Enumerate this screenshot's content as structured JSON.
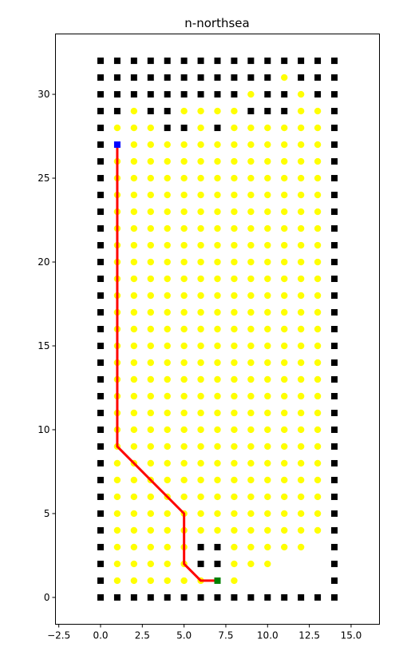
{
  "chart_data": {
    "type": "scatter",
    "title": "n-northsea",
    "xlabel": "",
    "ylabel": "",
    "xlim": [
      -2.7,
      16.7
    ],
    "ylim": [
      -1.6,
      33.6
    ],
    "xticks": [
      -2.5,
      0.0,
      2.5,
      5.0,
      7.5,
      10.0,
      12.5,
      15.0
    ],
    "xtick_labels": [
      "−2.5",
      "0.0",
      "2.5",
      "5.0",
      "7.5",
      "10.0",
      "12.5",
      "15.0"
    ],
    "yticks": [
      0,
      5,
      10,
      15,
      20,
      25,
      30
    ],
    "ytick_labels": [
      "0",
      "5",
      "10",
      "15",
      "20",
      "25",
      "30"
    ],
    "grid": false,
    "legend": "none",
    "colors": {
      "wall": "#000000",
      "free": "#ffff00",
      "path": "#ff0000",
      "start": "#0000ff",
      "goal": "#008000"
    },
    "series": [
      {
        "role": "walls",
        "marker": "square",
        "color": "#000000",
        "points": [
          [
            0,
            0
          ],
          [
            1,
            0
          ],
          [
            2,
            0
          ],
          [
            3,
            0
          ],
          [
            4,
            0
          ],
          [
            5,
            0
          ],
          [
            6,
            0
          ],
          [
            7,
            0
          ],
          [
            8,
            0
          ],
          [
            9,
            0
          ],
          [
            10,
            0
          ],
          [
            11,
            0
          ],
          [
            12,
            0
          ],
          [
            13,
            0
          ],
          [
            14,
            0
          ],
          [
            0,
            1
          ],
          [
            0,
            2
          ],
          [
            0,
            3
          ],
          [
            0,
            4
          ],
          [
            0,
            5
          ],
          [
            0,
            6
          ],
          [
            0,
            7
          ],
          [
            0,
            8
          ],
          [
            0,
            9
          ],
          [
            0,
            10
          ],
          [
            0,
            11
          ],
          [
            0,
            12
          ],
          [
            0,
            13
          ],
          [
            0,
            14
          ],
          [
            0,
            15
          ],
          [
            0,
            16
          ],
          [
            0,
            17
          ],
          [
            0,
            18
          ],
          [
            0,
            19
          ],
          [
            0,
            20
          ],
          [
            0,
            21
          ],
          [
            0,
            22
          ],
          [
            0,
            23
          ],
          [
            0,
            24
          ],
          [
            0,
            25
          ],
          [
            0,
            26
          ],
          [
            0,
            27
          ],
          [
            0,
            28
          ],
          [
            0,
            29
          ],
          [
            0,
            30
          ],
          [
            0,
            31
          ],
          [
            0,
            32
          ],
          [
            14,
            1
          ],
          [
            14,
            2
          ],
          [
            14,
            3
          ],
          [
            14,
            4
          ],
          [
            14,
            5
          ],
          [
            14,
            6
          ],
          [
            14,
            7
          ],
          [
            14,
            8
          ],
          [
            14,
            9
          ],
          [
            14,
            10
          ],
          [
            14,
            11
          ],
          [
            14,
            12
          ],
          [
            14,
            13
          ],
          [
            14,
            14
          ],
          [
            14,
            15
          ],
          [
            14,
            16
          ],
          [
            14,
            17
          ],
          [
            14,
            18
          ],
          [
            14,
            19
          ],
          [
            14,
            20
          ],
          [
            14,
            21
          ],
          [
            14,
            22
          ],
          [
            14,
            23
          ],
          [
            14,
            24
          ],
          [
            14,
            25
          ],
          [
            14,
            26
          ],
          [
            14,
            27
          ],
          [
            14,
            28
          ],
          [
            14,
            29
          ],
          [
            14,
            30
          ],
          [
            14,
            31
          ],
          [
            14,
            32
          ],
          [
            1,
            32
          ],
          [
            2,
            32
          ],
          [
            3,
            32
          ],
          [
            4,
            32
          ],
          [
            5,
            32
          ],
          [
            6,
            32
          ],
          [
            7,
            32
          ],
          [
            8,
            32
          ],
          [
            9,
            32
          ],
          [
            10,
            32
          ],
          [
            11,
            32
          ],
          [
            12,
            32
          ],
          [
            13,
            32
          ],
          [
            1,
            31
          ],
          [
            2,
            31
          ],
          [
            3,
            31
          ],
          [
            4,
            31
          ],
          [
            5,
            31
          ],
          [
            6,
            31
          ],
          [
            7,
            31
          ],
          [
            8,
            31
          ],
          [
            9,
            31
          ],
          [
            10,
            31
          ],
          [
            12,
            31
          ],
          [
            13,
            31
          ],
          [
            1,
            30
          ],
          [
            2,
            30
          ],
          [
            3,
            30
          ],
          [
            4,
            30
          ],
          [
            5,
            30
          ],
          [
            6,
            30
          ],
          [
            7,
            30
          ],
          [
            8,
            30
          ],
          [
            10,
            30
          ],
          [
            11,
            30
          ],
          [
            13,
            30
          ],
          [
            1,
            29
          ],
          [
            3,
            29
          ],
          [
            4,
            29
          ],
          [
            9,
            29
          ],
          [
            10,
            29
          ],
          [
            11,
            29
          ],
          [
            4,
            28
          ],
          [
            5,
            28
          ],
          [
            7,
            28
          ],
          [
            6,
            3
          ],
          [
            7,
            3
          ],
          [
            6,
            2
          ],
          [
            7,
            2
          ]
        ]
      },
      {
        "role": "free",
        "marker": "circle",
        "color": "#ffff00",
        "rows": [
          {
            "y": 1,
            "xs": [
              1,
              2,
              3,
              4,
              5,
              6,
              8
            ]
          },
          {
            "y": 2,
            "xs": [
              1,
              2,
              3,
              4,
              5,
              8,
              9,
              10
            ]
          },
          {
            "y": 3,
            "xs": [
              1,
              2,
              3,
              4,
              5,
              8,
              9,
              10,
              11,
              12
            ]
          },
          {
            "y": 4,
            "xs": [
              1,
              2,
              3,
              4,
              5,
              6,
              7,
              8,
              9,
              10,
              11,
              12,
              13
            ]
          },
          {
            "y": 5,
            "xs": [
              1,
              2,
              3,
              4,
              5,
              6,
              7,
              8,
              9,
              10,
              11,
              12,
              13
            ]
          },
          {
            "y": 6,
            "xs": [
              1,
              2,
              3,
              4,
              5,
              6,
              7,
              8,
              9,
              10,
              11,
              12,
              13
            ]
          },
          {
            "y": 7,
            "xs": [
              1,
              2,
              3,
              4,
              5,
              6,
              7,
              8,
              9,
              10,
              11,
              12,
              13
            ]
          },
          {
            "y": 8,
            "xs": [
              1,
              2,
              3,
              4,
              5,
              6,
              7,
              8,
              9,
              10,
              11,
              12,
              13
            ]
          },
          {
            "y": 9,
            "xs": [
              1,
              2,
              3,
              4,
              5,
              6,
              7,
              8,
              9,
              10,
              11,
              12,
              13
            ]
          },
          {
            "y": 10,
            "xs": [
              1,
              2,
              3,
              4,
              5,
              6,
              7,
              8,
              9,
              10,
              11,
              12,
              13
            ]
          },
          {
            "y": 11,
            "xs": [
              1,
              2,
              3,
              4,
              5,
              6,
              7,
              8,
              9,
              10,
              11,
              12,
              13
            ]
          },
          {
            "y": 12,
            "xs": [
              1,
              2,
              3,
              4,
              5,
              6,
              7,
              8,
              9,
              10,
              11,
              12,
              13
            ]
          },
          {
            "y": 13,
            "xs": [
              1,
              2,
              3,
              4,
              5,
              6,
              7,
              8,
              9,
              10,
              11,
              12,
              13
            ]
          },
          {
            "y": 14,
            "xs": [
              1,
              2,
              3,
              4,
              5,
              6,
              7,
              8,
              9,
              10,
              11,
              12,
              13
            ]
          },
          {
            "y": 15,
            "xs": [
              1,
              2,
              3,
              4,
              5,
              6,
              7,
              8,
              9,
              10,
              11,
              12,
              13
            ]
          },
          {
            "y": 16,
            "xs": [
              1,
              2,
              3,
              4,
              5,
              6,
              7,
              8,
              9,
              10,
              11,
              12,
              13
            ]
          },
          {
            "y": 17,
            "xs": [
              1,
              2,
              3,
              4,
              5,
              6,
              7,
              8,
              9,
              10,
              11,
              12,
              13
            ]
          },
          {
            "y": 18,
            "xs": [
              1,
              2,
              3,
              4,
              5,
              6,
              7,
              8,
              9,
              10,
              11,
              12,
              13
            ]
          },
          {
            "y": 19,
            "xs": [
              1,
              2,
              3,
              4,
              5,
              6,
              7,
              8,
              9,
              10,
              11,
              12,
              13
            ]
          },
          {
            "y": 20,
            "xs": [
              1,
              2,
              3,
              4,
              5,
              6,
              7,
              8,
              9,
              10,
              11,
              12,
              13
            ]
          },
          {
            "y": 21,
            "xs": [
              1,
              2,
              3,
              4,
              5,
              6,
              7,
              8,
              9,
              10,
              11,
              12,
              13
            ]
          },
          {
            "y": 22,
            "xs": [
              1,
              2,
              3,
              4,
              5,
              6,
              7,
              8,
              9,
              10,
              11,
              12,
              13
            ]
          },
          {
            "y": 23,
            "xs": [
              1,
              2,
              3,
              4,
              5,
              6,
              7,
              8,
              9,
              10,
              11,
              12,
              13
            ]
          },
          {
            "y": 24,
            "xs": [
              1,
              2,
              3,
              4,
              5,
              6,
              7,
              8,
              9,
              10,
              11,
              12,
              13
            ]
          },
          {
            "y": 25,
            "xs": [
              1,
              2,
              3,
              4,
              5,
              6,
              7,
              8,
              9,
              10,
              11,
              12,
              13
            ]
          },
          {
            "y": 26,
            "xs": [
              1,
              2,
              3,
              4,
              5,
              6,
              7,
              8,
              9,
              10,
              11,
              12,
              13
            ]
          },
          {
            "y": 27,
            "xs": [
              2,
              3,
              4,
              5,
              6,
              7,
              8,
              9,
              10,
              11,
              12,
              13
            ]
          },
          {
            "y": 28,
            "xs": [
              1,
              2,
              3,
              6,
              8,
              9,
              10,
              11,
              12,
              13
            ]
          },
          {
            "y": 29,
            "xs": [
              2,
              5,
              6,
              7,
              8,
              12,
              13
            ]
          },
          {
            "y": 30,
            "xs": [
              9,
              12
            ]
          },
          {
            "y": 31,
            "xs": [
              11
            ]
          }
        ]
      },
      {
        "role": "path",
        "type": "line",
        "color": "#ff0000",
        "x": [
          1,
          1,
          5,
          5,
          6,
          7
        ],
        "y": [
          27,
          9,
          5,
          2,
          1,
          1
        ]
      },
      {
        "role": "start",
        "marker": "square",
        "color": "#0000ff",
        "points": [
          [
            1,
            27
          ]
        ]
      },
      {
        "role": "goal",
        "marker": "square",
        "color": "#008000",
        "points": [
          [
            7,
            1
          ]
        ]
      }
    ]
  }
}
